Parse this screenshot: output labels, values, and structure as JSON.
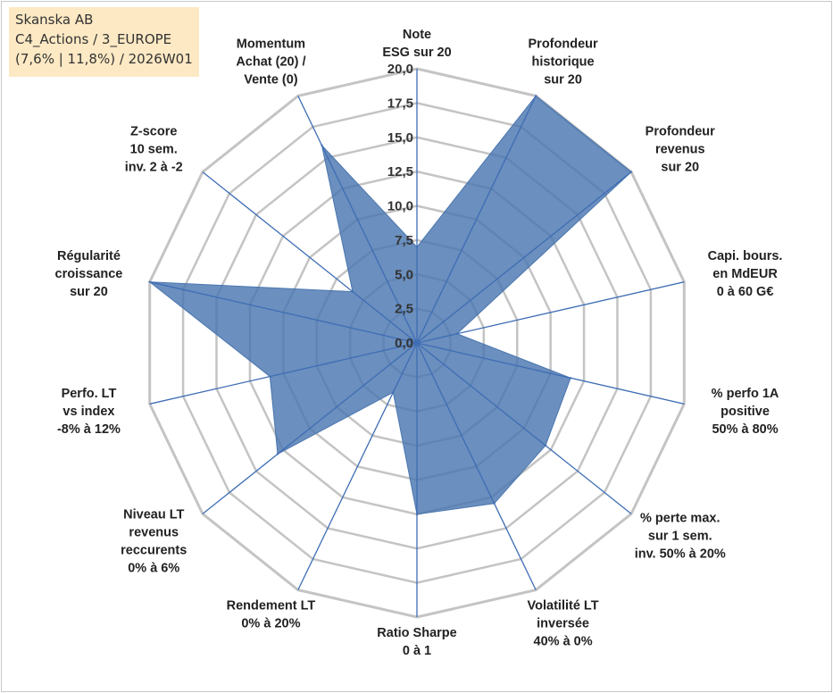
{
  "info": {
    "line1": "Skanska AB",
    "line2": "C4_Actions / 3_EUROPE",
    "line3": "(7,6% | 11,8%) / 2026W01"
  },
  "chart_data": {
    "type": "radar",
    "rmin": 0,
    "rmax": 20,
    "tick_labels": [
      "0,0",
      "2,5",
      "5,0",
      "7,5",
      "10,0",
      "12,5",
      "15,0",
      "17,5",
      "20,0"
    ],
    "grid": true,
    "axes": [
      {
        "lines": [
          "Note",
          "ESG sur 20"
        ],
        "value": 7.0
      },
      {
        "lines": [
          "Profondeur",
          "historique",
          "sur 20"
        ],
        "value": 20.0
      },
      {
        "lines": [
          "Profondeur",
          "revenus",
          "sur 20"
        ],
        "value": 20.0
      },
      {
        "lines": [
          "Capi. bours.",
          "en MdEUR",
          "0 à 60 G€"
        ],
        "value": 3.0
      },
      {
        "lines": [
          "% perfo 1A",
          "positive",
          "50% à 80%"
        ],
        "value": 11.5
      },
      {
        "lines": [
          "% perte max.",
          "sur 1 sem.",
          "inv. 50% à 20%"
        ],
        "value": 12.0
      },
      {
        "lines": [
          "Volatilité LT",
          "inversée",
          "40% à 0%"
        ],
        "value": 13.0
      },
      {
        "lines": [
          "Ratio Sharpe",
          "0 à 1"
        ],
        "value": 12.5
      },
      {
        "lines": [
          "Rendement LT",
          "0% à 20%"
        ],
        "value": 4.0
      },
      {
        "lines": [
          "Niveau LT",
          "revenus",
          "reccurents",
          "0% à 6%"
        ],
        "value": 13.0
      },
      {
        "lines": [
          "Perfo. LT",
          "vs index",
          "-8% à 12%"
        ],
        "value": 11.0
      },
      {
        "lines": [
          "Régularité",
          "croissance",
          "sur 20"
        ],
        "value": 20.0
      },
      {
        "lines": [
          "Z-score",
          "10 sem.",
          "inv. 2 à -2"
        ],
        "value": 6.0
      },
      {
        "lines": [
          "Momentum",
          "Achat (20) /",
          "Vente (0)"
        ],
        "value": 16.0
      }
    ],
    "colors": {
      "fill": "#4a76b0",
      "grid": "#c4c4c4",
      "spoke": "#3e6db5",
      "info_bg": "#fde9c4"
    }
  }
}
